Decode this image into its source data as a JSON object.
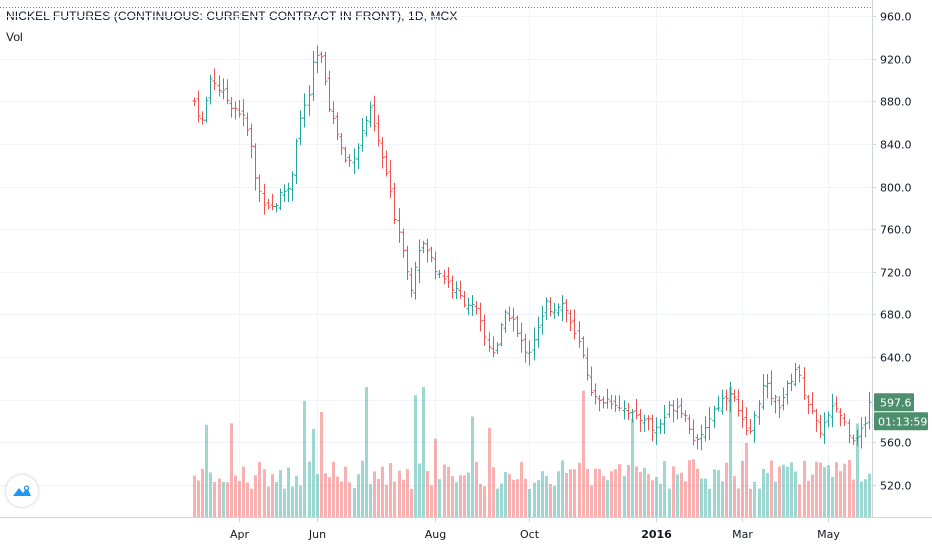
{
  "title": "NICKEL FUTURES (CONTINUOUS: CURRENT CONTRACT IN FRONT), 1D, MCX",
  "volume_label": "Vol",
  "colors": {
    "up": "#26a69a",
    "down": "#ef5350",
    "price_tag": "#4d8f6d",
    "grid": "#f0f3fa",
    "axis": "#131722"
  },
  "price_tag": {
    "price": "597.6",
    "countdown": "01:13:59"
  },
  "icons": {
    "logo": "tradingview-logo-icon"
  },
  "chart_data": {
    "type": "ohlc",
    "x_labels": [
      {
        "text": "Apr",
        "bold": false
      },
      {
        "text": "Jun",
        "bold": false
      },
      {
        "text": "Aug",
        "bold": false
      },
      {
        "text": "Oct",
        "bold": false
      },
      {
        "text": "2016",
        "bold": true
      },
      {
        "text": "Mar",
        "bold": false
      },
      {
        "text": "May",
        "bold": false
      }
    ],
    "y_ticks": [
      520,
      560,
      600,
      640,
      680,
      720,
      760,
      800,
      840,
      880,
      920,
      960
    ],
    "y_tick_labels": [
      "520.0",
      "560.0",
      "600.0",
      "640.0",
      "680.0",
      "720.0",
      "760.0",
      "800.0",
      "840.0",
      "880.0",
      "920.0",
      "960.0"
    ],
    "ylim": [
      490,
      975
    ],
    "last_price": 597.6,
    "close_path": [
      [
        0,
        880
      ],
      [
        3,
        860
      ],
      [
        6,
        905
      ],
      [
        9,
        890
      ],
      [
        12,
        880
      ],
      [
        16,
        870
      ],
      [
        18,
        860
      ],
      [
        20,
        840
      ],
      [
        22,
        800
      ],
      [
        25,
        785
      ],
      [
        28,
        780
      ],
      [
        31,
        795
      ],
      [
        34,
        800
      ],
      [
        36,
        845
      ],
      [
        38,
        870
      ],
      [
        40,
        880
      ],
      [
        42,
        915
      ],
      [
        44,
        925
      ],
      [
        46,
        905
      ],
      [
        48,
        870
      ],
      [
        50,
        855
      ],
      [
        52,
        835
      ],
      [
        54,
        820
      ],
      [
        56,
        830
      ],
      [
        58,
        840
      ],
      [
        60,
        860
      ],
      [
        62,
        870
      ],
      [
        64,
        850
      ],
      [
        66,
        830
      ],
      [
        68,
        810
      ],
      [
        70,
        780
      ],
      [
        72,
        760
      ],
      [
        74,
        740
      ],
      [
        76,
        700
      ],
      [
        78,
        730
      ],
      [
        80,
        750
      ],
      [
        82,
        740
      ],
      [
        85,
        725
      ],
      [
        88,
        715
      ],
      [
        91,
        705
      ],
      [
        94,
        695
      ],
      [
        97,
        690
      ],
      [
        100,
        680
      ],
      [
        102,
        660
      ],
      [
        104,
        650
      ],
      [
        106,
        645
      ],
      [
        108,
        665
      ],
      [
        110,
        680
      ],
      [
        112,
        680
      ],
      [
        114,
        660
      ],
      [
        116,
        650
      ],
      [
        118,
        645
      ],
      [
        120,
        660
      ],
      [
        122,
        670
      ],
      [
        124,
        690
      ],
      [
        126,
        685
      ],
      [
        128,
        690
      ],
      [
        130,
        690
      ],
      [
        132,
        680
      ],
      [
        134,
        660
      ],
      [
        136,
        650
      ],
      [
        138,
        630
      ],
      [
        140,
        610
      ],
      [
        142,
        595
      ],
      [
        144,
        600
      ],
      [
        147,
        600
      ],
      [
        150,
        595
      ],
      [
        153,
        590
      ],
      [
        156,
        580
      ],
      [
        159,
        585
      ],
      [
        162,
        570
      ],
      [
        165,
        580
      ],
      [
        168,
        595
      ],
      [
        171,
        595
      ],
      [
        174,
        580
      ],
      [
        176,
        565
      ],
      [
        178,
        555
      ],
      [
        180,
        575
      ],
      [
        183,
        590
      ],
      [
        186,
        600
      ],
      [
        189,
        610
      ],
      [
        191,
        595
      ],
      [
        193,
        580
      ],
      [
        195,
        565
      ],
      [
        197,
        575
      ],
      [
        199,
        600
      ],
      [
        201,
        615
      ],
      [
        203,
        605
      ],
      [
        206,
        595
      ],
      [
        209,
        610
      ],
      [
        212,
        630
      ],
      [
        214,
        615
      ],
      [
        216,
        600
      ],
      [
        218,
        585
      ],
      [
        220,
        570
      ],
      [
        223,
        580
      ],
      [
        226,
        595
      ],
      [
        229,
        580
      ],
      [
        232,
        565
      ],
      [
        235,
        570
      ],
      [
        238,
        590
      ]
    ],
    "x_label_bar": [
      11,
      30,
      59,
      82,
      113,
      134,
      155
    ],
    "bar_count": 166
  }
}
